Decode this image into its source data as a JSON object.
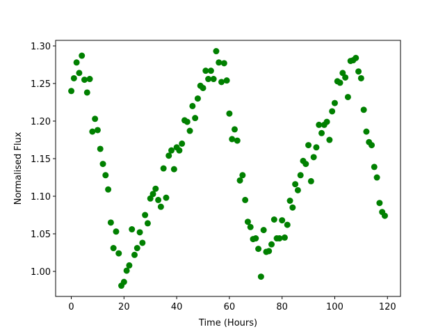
{
  "chart_data": {
    "type": "scatter",
    "xlabel": "Time (Hours)",
    "ylabel": "Normalised Flux",
    "color": "#008000",
    "xlim": [
      -5.95,
      124.95
    ],
    "ylim": [
      0.9667,
      1.3074
    ],
    "xticks": [
      0,
      20,
      40,
      60,
      80,
      100,
      120
    ],
    "yticks": [
      {
        "value": 1.0,
        "label": "1.00"
      },
      {
        "value": 1.05,
        "label": "1.05"
      },
      {
        "value": 1.1,
        "label": "1.10"
      },
      {
        "value": 1.15,
        "label": "1.15"
      },
      {
        "value": 1.2,
        "label": "1.20"
      },
      {
        "value": 1.25,
        "label": "1.25"
      },
      {
        "value": 1.3,
        "label": "1.30"
      }
    ],
    "x": [
      0,
      1,
      2,
      3,
      4,
      5,
      6,
      7,
      8,
      9,
      10,
      11,
      12,
      13,
      14,
      15,
      16,
      17,
      18,
      19,
      20,
      21,
      22,
      23,
      24,
      25,
      26,
      27,
      28,
      29,
      30,
      31,
      32,
      33,
      34,
      35,
      36,
      37,
      38,
      39,
      40,
      41,
      42,
      43,
      44,
      45,
      46,
      47,
      48,
      49,
      50,
      51,
      52,
      53,
      54,
      55,
      56,
      57,
      58,
      59,
      60,
      61,
      62,
      63,
      64,
      65,
      66,
      67,
      68,
      69,
      70,
      71,
      72,
      73,
      74,
      75,
      76,
      77,
      78,
      79,
      80,
      81,
      82,
      83,
      84,
      85,
      86,
      87,
      88,
      89,
      90,
      91,
      92,
      93,
      94,
      95,
      96,
      97,
      98,
      99,
      100,
      101,
      102,
      103,
      104,
      105,
      106,
      107,
      108,
      109,
      110,
      111,
      112,
      113,
      114,
      115,
      116,
      117,
      118,
      119
    ],
    "values": [
      1.24,
      1.257,
      1.278,
      1.264,
      1.287,
      1.255,
      1.238,
      1.256,
      1.186,
      1.203,
      1.188,
      1.163,
      1.143,
      1.128,
      1.109,
      1.065,
      1.031,
      1.053,
      1.024,
      0.981,
      0.986,
      1.001,
      1.008,
      1.056,
      1.022,
      1.031,
      1.052,
      1.038,
      1.075,
      1.064,
      1.097,
      1.103,
      1.11,
      1.095,
      1.086,
      1.137,
      1.098,
      1.154,
      1.161,
      1.136,
      1.165,
      1.161,
      1.17,
      1.201,
      1.199,
      1.187,
      1.22,
      1.204,
      1.23,
      1.247,
      1.244,
      1.267,
      1.256,
      1.267,
      1.256,
      1.293,
      1.278,
      1.252,
      1.277,
      1.254,
      1.21,
      1.176,
      1.189,
      1.174,
      1.121,
      1.128,
      1.095,
      1.066,
      1.059,
      1.043,
      1.044,
      1.03,
      0.993,
      1.055,
      1.026,
      1.027,
      1.036,
      1.069,
      1.044,
      1.044,
      1.068,
      1.045,
      1.062,
      1.094,
      1.085,
      1.116,
      1.108,
      1.128,
      1.147,
      1.143,
      1.168,
      1.12,
      1.152,
      1.165,
      1.195,
      1.184,
      1.195,
      1.199,
      1.175,
      1.213,
      1.224,
      1.253,
      1.251,
      1.264,
      1.258,
      1.232,
      1.28,
      1.281,
      1.284,
      1.266,
      1.257,
      1.215,
      1.186,
      1.172,
      1.168,
      1.139,
      1.125,
      1.091,
      1.079,
      1.074
    ]
  }
}
